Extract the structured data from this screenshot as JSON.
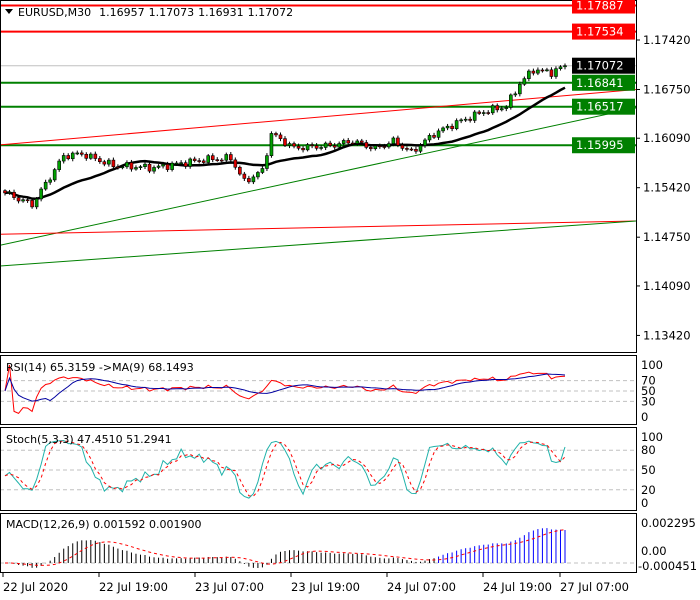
{
  "header": {
    "symbol": "EURUSD,M30",
    "open": "1.16957",
    "high": "1.17073",
    "low": "1.16931",
    "close": "1.17072"
  },
  "chart_data": {
    "type": "candlestick",
    "symbol": "EURUSD",
    "timeframe": "M30",
    "price_axis": {
      "ticks": [
        "1.17420",
        "1.16750",
        "1.16090",
        "1.15420",
        "1.14750",
        "1.14090",
        "1.13420"
      ],
      "range": [
        1.1315,
        1.1802
      ]
    },
    "time_axis": {
      "ticks": [
        "22 Jul 2020",
        "22 Jul 19:00",
        "23 Jul 07:00",
        "23 Jul 19:00",
        "24 Jul 07:00",
        "24 Jul 19:00",
        "27 Jul 07:00"
      ]
    },
    "bars": 125,
    "close_path": [
      [
        0,
        1.1535
      ],
      [
        6,
        1.1519
      ],
      [
        13,
        1.1585
      ],
      [
        17,
        1.1588
      ],
      [
        24,
        1.1572
      ],
      [
        33,
        1.1569
      ],
      [
        44,
        1.158
      ],
      [
        50,
        1.1582
      ],
      [
        53,
        1.155
      ],
      [
        57,
        1.1565
      ],
      [
        59,
        1.1615
      ],
      [
        64,
        1.1596
      ],
      [
        72,
        1.1599
      ],
      [
        77,
        1.1605
      ],
      [
        82,
        1.1595
      ],
      [
        86,
        1.1605
      ],
      [
        90,
        1.159
      ],
      [
        95,
        1.1615
      ],
      [
        100,
        1.163
      ],
      [
        106,
        1.1645
      ],
      [
        111,
        1.1652
      ],
      [
        114,
        1.1683
      ],
      [
        117,
        1.1702
      ],
      [
        121,
        1.1698
      ],
      [
        124,
        1.17072
      ]
    ],
    "bid": {
      "value": "1.17072",
      "color": "#000000"
    },
    "levels": [
      {
        "value": "1.17887",
        "color": "#ff0000"
      },
      {
        "value": "1.17534",
        "color": "#ff0000"
      },
      {
        "value": "1.16841",
        "color": "#008000"
      },
      {
        "value": "1.16517",
        "color": "#008000"
      },
      {
        "value": "1.15995",
        "color": "#008000"
      }
    ],
    "trendlines": [
      {
        "color": "#ff0000",
        "start": 1.16,
        "end": 1.1675
      },
      {
        "color": "#008000",
        "start": 1.1464,
        "end": 1.165
      },
      {
        "color": "#ff0000",
        "start": 1.1479,
        "end": 1.1497
      },
      {
        "color": "#008000",
        "start": 1.1436,
        "end": 1.1497
      }
    ],
    "ma_period": 20,
    "colors": {
      "bull": "#00a000",
      "bear": "#e00000",
      "ma": "#000000"
    }
  },
  "indicators": {
    "rsi": {
      "title": "RSI(14) 65.3159  ->MA(9) 68.1493",
      "ticks": [
        "100",
        "70",
        "50",
        "30",
        "0"
      ]
    },
    "stoch": {
      "title": "Stoch(5,3,3) 47.4510 51.2941",
      "ticks": [
        "100",
        "80",
        "50",
        "20",
        "0"
      ]
    },
    "macd": {
      "title": "MACD(12,26,9) 0.001592 0.001900",
      "ticks": [
        "0.002295",
        "0.00",
        "-0.000451"
      ]
    }
  }
}
